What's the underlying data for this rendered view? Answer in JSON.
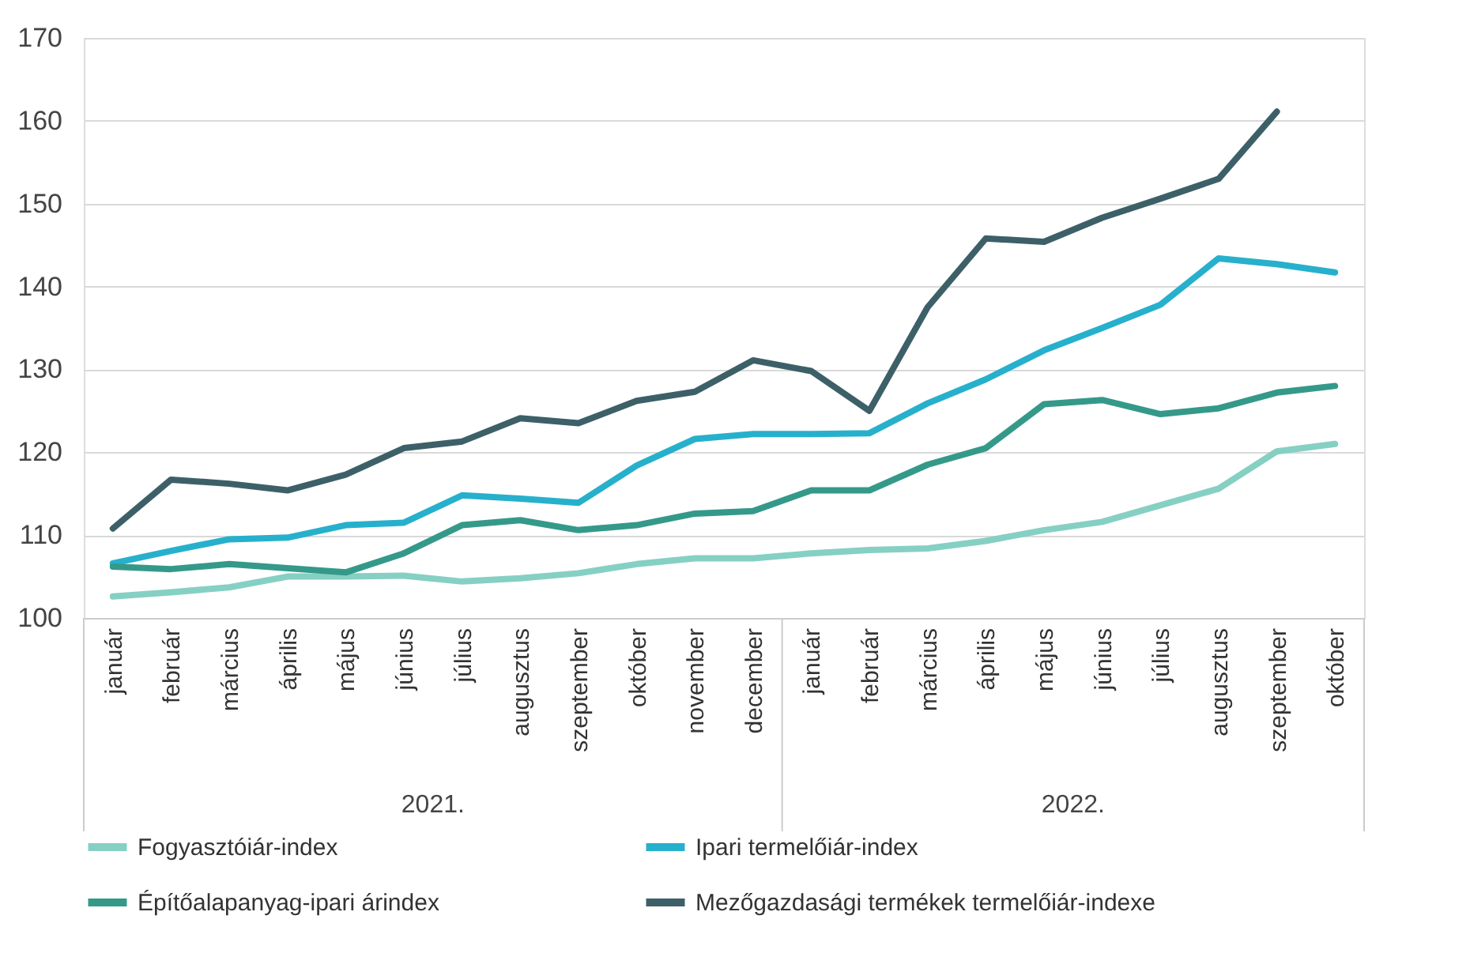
{
  "chart_data": {
    "type": "line",
    "categories": [
      "január",
      "február",
      "március",
      "április",
      "május",
      "június",
      "július",
      "augusztus",
      "szeptember",
      "október",
      "november",
      "december",
      "január",
      "február",
      "március",
      "április",
      "május",
      "június",
      "július",
      "augusztus",
      "szeptember",
      "október"
    ],
    "annotations": [
      "2021.",
      "2022."
    ],
    "ylim": [
      100,
      170
    ],
    "yticks": [
      100,
      110,
      120,
      130,
      140,
      150,
      160,
      170
    ],
    "grid": "y",
    "legend": "bottom",
    "line_style": "solid",
    "marker": "none",
    "series": [
      {
        "name": "Fogyasztóiár-index",
        "color": "#85d0c3",
        "values": [
          102.6,
          103.1,
          103.7,
          105.0,
          105.0,
          105.1,
          104.4,
          104.8,
          105.4,
          106.5,
          107.2,
          107.2,
          107.8,
          108.2,
          108.4,
          109.3,
          110.6,
          111.6,
          113.6,
          115.6,
          120.1,
          121.0
        ]
      },
      {
        "name": "Ipari termelőiár-index",
        "color": "#27b0cc",
        "values": [
          106.6,
          108.1,
          109.5,
          109.7,
          111.2,
          111.5,
          114.8,
          114.4,
          113.9,
          118.4,
          121.6,
          122.2,
          122.2,
          122.3,
          125.9,
          128.8,
          132.3,
          135.0,
          137.8,
          143.4,
          142.7,
          141.7
        ]
      },
      {
        "name": "Építőalapanyag-ipari árindex",
        "color": "#35998a",
        "values": [
          106.2,
          105.9,
          106.5,
          106.0,
          105.5,
          107.8,
          111.2,
          111.8,
          110.6,
          111.2,
          112.6,
          112.9,
          115.4,
          115.4,
          118.5,
          120.5,
          125.8,
          126.3,
          124.6,
          125.3,
          127.2,
          128.0
        ]
      },
      {
        "name": "Mezőgazdasági termékek termelőiár-indexe",
        "color": "#3d6068",
        "values": [
          110.8,
          116.7,
          116.2,
          115.4,
          117.3,
          120.5,
          121.3,
          124.1,
          123.5,
          126.2,
          127.3,
          131.1,
          129.8,
          125.0,
          137.5,
          145.8,
          145.4,
          148.3,
          150.6,
          153.0,
          161.1,
          null
        ]
      }
    ]
  }
}
